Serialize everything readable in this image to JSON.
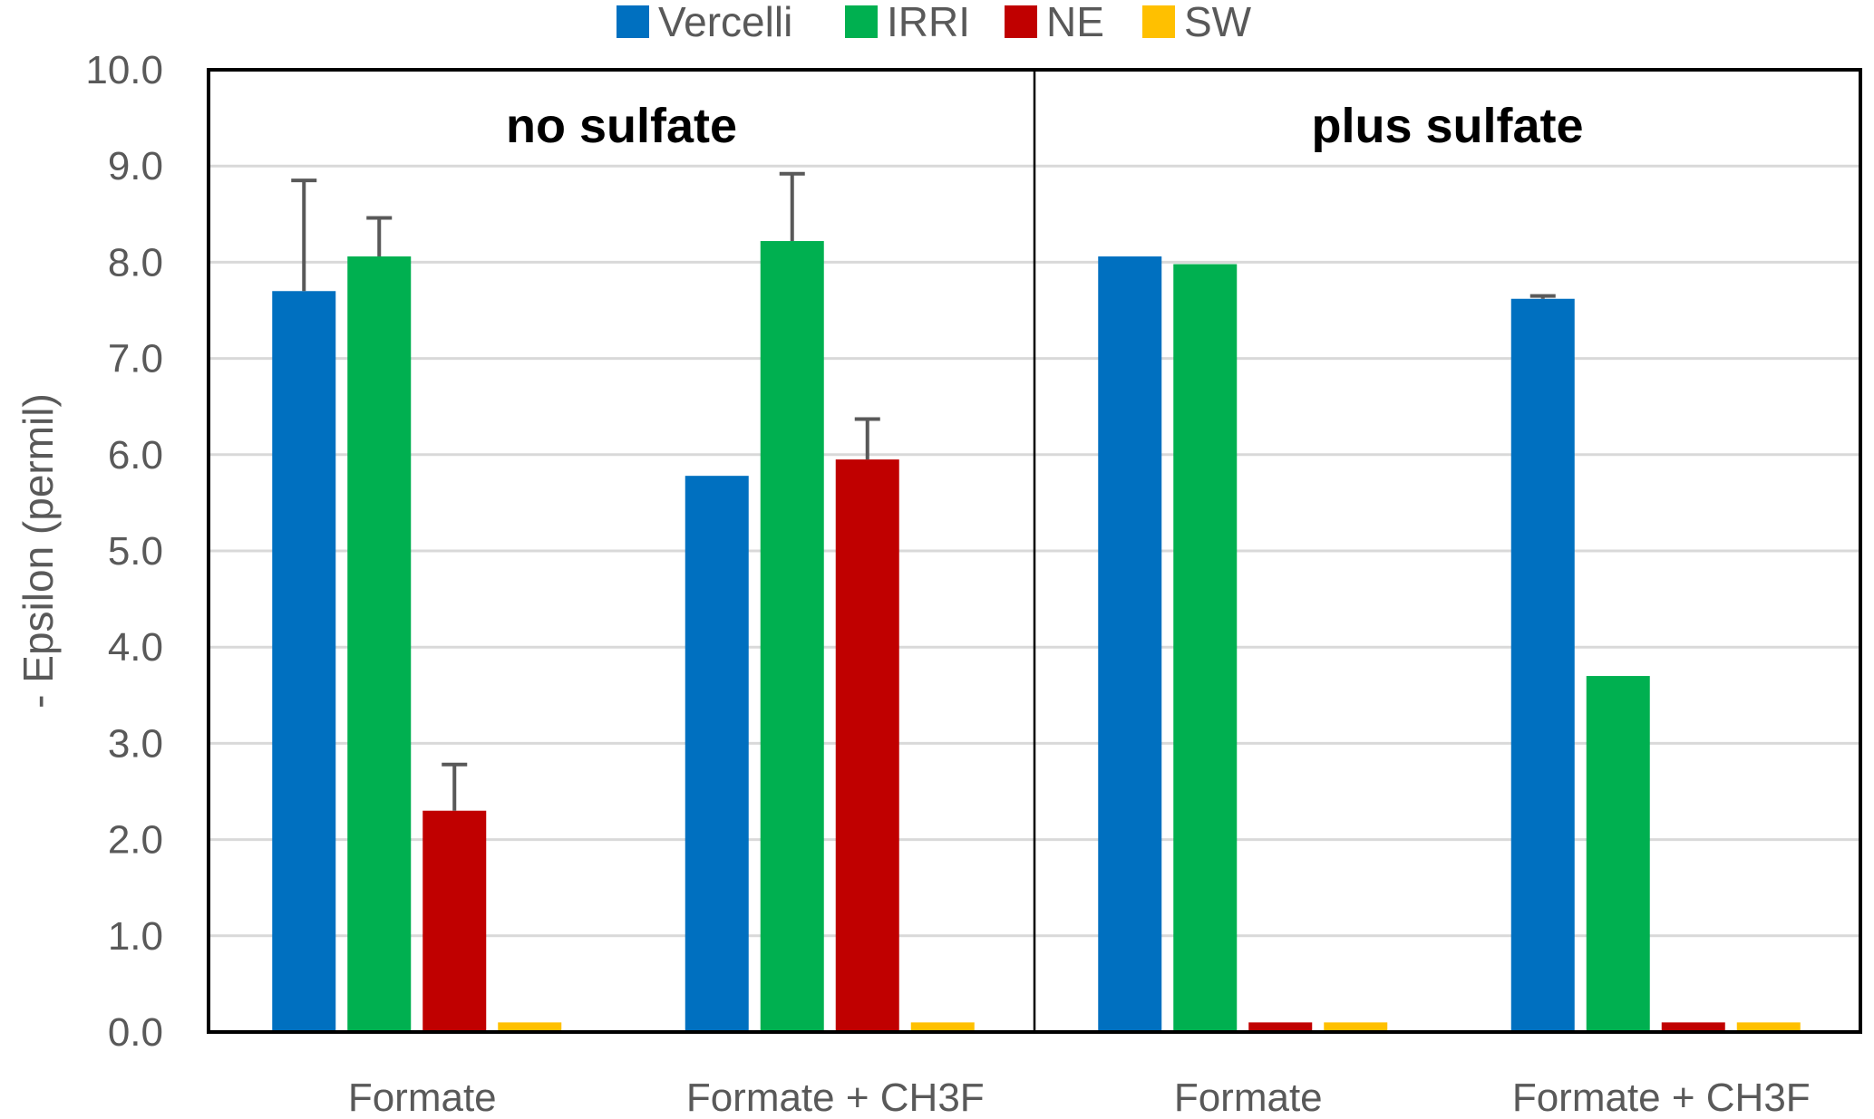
{
  "chart_data": {
    "type": "bar",
    "ylabel": "- Epsilon (permil)",
    "ylim": [
      0,
      10
    ],
    "ytick_step": 1,
    "ytick_labels": [
      "0.0",
      "1.0",
      "2.0",
      "3.0",
      "4.0",
      "5.0",
      "6.0",
      "7.0",
      "8.0",
      "9.0",
      "10.0"
    ],
    "grid": true,
    "legend": {
      "placement": "top-center",
      "entries": [
        {
          "name": "Vercelli",
          "color": "#0070C0"
        },
        {
          "name": "IRRI",
          "color": "#00B050"
        },
        {
          "name": "NE",
          "color": "#C00000"
        },
        {
          "name": "SW",
          "color": "#FFC000"
        }
      ]
    },
    "panels": [
      {
        "title": "no sulfate",
        "categories": [
          "Formate",
          "Formate + CH3F"
        ],
        "series": [
          {
            "name": "Vercelli",
            "values": [
              7.7,
              5.78
            ],
            "errors": [
              1.15,
              0
            ]
          },
          {
            "name": "IRRI",
            "values": [
              8.06,
              8.22
            ],
            "errors": [
              0.4,
              0.7
            ]
          },
          {
            "name": "NE",
            "values": [
              2.3,
              5.95
            ],
            "errors": [
              0.48,
              0.42
            ]
          },
          {
            "name": "SW",
            "values": [
              0.1,
              0.1
            ],
            "errors": [
              0,
              0
            ]
          }
        ]
      },
      {
        "title": "plus sulfate",
        "categories": [
          "Formate",
          "Formate + CH3F"
        ],
        "series": [
          {
            "name": "Vercelli",
            "values": [
              8.06,
              7.62
            ],
            "errors": [
              0,
              0.03
            ]
          },
          {
            "name": "IRRI",
            "values": [
              7.98,
              3.7
            ],
            "errors": [
              0,
              0
            ]
          },
          {
            "name": "NE",
            "values": [
              0.1,
              0.1
            ],
            "errors": [
              0,
              0
            ]
          },
          {
            "name": "SW",
            "values": [
              0.1,
              0.1
            ],
            "errors": [
              0,
              0
            ]
          }
        ]
      }
    ]
  }
}
